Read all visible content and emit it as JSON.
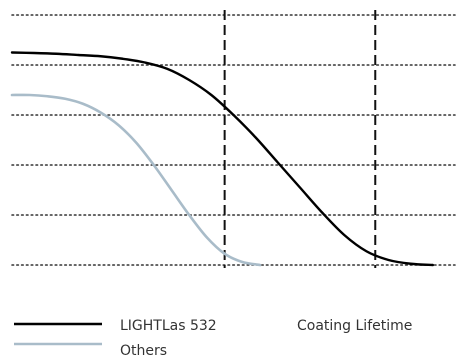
{
  "chart_data": {
    "type": "line",
    "title": "",
    "xlabel": "Coating Lifetime",
    "ylabel": "",
    "x_range": [
      0,
      1
    ],
    "y_range": [
      0,
      1
    ],
    "grid": {
      "horizontal": true,
      "style": "dotted",
      "y_values": [
        0,
        0.2,
        0.4,
        0.6,
        0.8,
        1.0
      ]
    },
    "reference_lines": {
      "style": "dashed",
      "x_values": [
        0.48,
        0.82
      ]
    },
    "legend": {
      "placement": "bottom-left"
    },
    "series": [
      {
        "name": "LIGHTLas 532",
        "color": "#000000",
        "x": [
          0.0,
          0.05,
          0.1,
          0.15,
          0.2,
          0.25,
          0.3,
          0.35,
          0.4,
          0.45,
          0.5,
          0.55,
          0.6,
          0.65,
          0.7,
          0.75,
          0.8,
          0.85,
          0.9,
          0.95
        ],
        "y": [
          0.85,
          0.848,
          0.845,
          0.84,
          0.835,
          0.825,
          0.81,
          0.785,
          0.74,
          0.68,
          0.6,
          0.51,
          0.41,
          0.31,
          0.21,
          0.12,
          0.055,
          0.02,
          0.005,
          0.0
        ]
      },
      {
        "name": "Others",
        "color": "#a9bcc9",
        "x": [
          0.0,
          0.04,
          0.08,
          0.12,
          0.16,
          0.2,
          0.24,
          0.28,
          0.32,
          0.36,
          0.4,
          0.44,
          0.48,
          0.52,
          0.56
        ],
        "y": [
          0.68,
          0.68,
          0.675,
          0.665,
          0.645,
          0.61,
          0.56,
          0.49,
          0.4,
          0.3,
          0.2,
          0.11,
          0.045,
          0.012,
          0.0
        ]
      }
    ]
  }
}
